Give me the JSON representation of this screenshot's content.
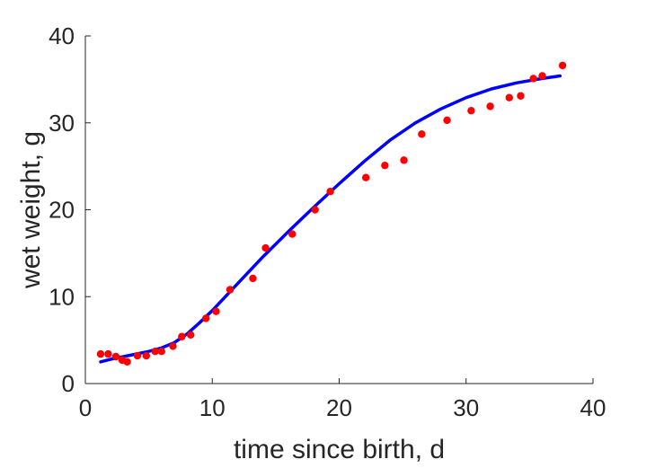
{
  "chart_data": {
    "type": "scatter",
    "xlabel": "time since birth, d",
    "ylabel": "wet weight, g",
    "xlim": [
      0,
      40
    ],
    "ylim": [
      0,
      40
    ],
    "xticks": [
      0,
      10,
      20,
      30,
      40
    ],
    "yticks": [
      0,
      10,
      20,
      30,
      40
    ],
    "grid": false,
    "legend": "none",
    "series": [
      {
        "kind": "points",
        "color": "#ff0000",
        "x": [
          1.2,
          1.8,
          2.4,
          2.9,
          3.3,
          4.1,
          4.8,
          5.5,
          6.0,
          6.9,
          7.6,
          8.3,
          9.5,
          10.3,
          11.4,
          13.2,
          14.2,
          16.3,
          18.1,
          19.3,
          22.1,
          23.6,
          25.1,
          26.5,
          28.5,
          30.4,
          31.9,
          33.4,
          34.3,
          35.3,
          36.0,
          37.6
        ],
        "y": [
          3.4,
          3.4,
          3.1,
          2.7,
          2.5,
          3.2,
          3.2,
          3.7,
          3.7,
          4.3,
          5.4,
          5.6,
          7.5,
          8.3,
          10.8,
          12.1,
          15.6,
          17.2,
          20.0,
          22.1,
          23.7,
          25.1,
          25.7,
          28.7,
          30.3,
          31.4,
          31.9,
          32.9,
          33.1,
          35.1,
          35.4,
          36.6
        ]
      },
      {
        "kind": "line",
        "color": "#0000ff",
        "x": [
          1.2,
          2,
          3,
          4,
          5,
          6,
          7,
          8,
          9,
          10,
          12,
          14,
          16,
          18,
          20,
          22,
          24,
          26,
          28,
          30,
          32,
          34,
          36,
          37.4
        ],
        "y": [
          2.5,
          2.8,
          3.1,
          3.4,
          3.7,
          4.1,
          4.7,
          5.7,
          7.0,
          8.4,
          11.5,
          14.6,
          17.5,
          20.3,
          23.0,
          25.6,
          28.0,
          30.0,
          31.6,
          32.9,
          33.9,
          34.6,
          35.1,
          35.4
        ]
      }
    ]
  }
}
